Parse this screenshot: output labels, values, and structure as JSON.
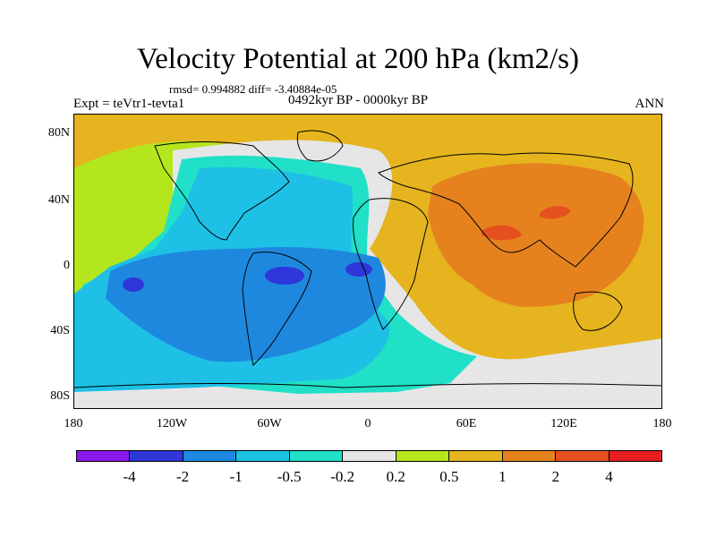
{
  "title": "Velocity Potential at 200 hPa (km2/s)",
  "stats": "rmsd= 0.994882 diff= -3.40884e-05",
  "experiment": "Expt = teVtr1-tevta1",
  "period": "0492kyr BP - 0000kyr BP",
  "season": "ANN",
  "lat_labels": [
    "80N",
    "40N",
    "0",
    "40S",
    "80S"
  ],
  "lon_labels": [
    "180",
    "120W",
    "60W",
    "0",
    "60E",
    "120E",
    "180"
  ],
  "colorbar": {
    "labels": [
      "-4",
      "-2",
      "-1",
      "-0.5",
      "-0.2",
      "0.2",
      "0.5",
      "1",
      "2",
      "4"
    ],
    "colors": [
      "#8a1be8",
      "#2e37d9",
      "#1e88de",
      "#1ec0e6",
      "#20e0c8",
      "#e6e6e6",
      "#b4e61e",
      "#e6b41e",
      "#e6821e",
      "#e6501e",
      "#e61e1e"
    ]
  },
  "palette": {
    "ocean_light": "#e6e6e6",
    "blue_mid": "#1ec0e6",
    "blue_deep": "#1e88de",
    "blue_min": "#2e37d9",
    "cyan": "#20e0c8",
    "green": "#b4e61e",
    "yellow": "#e6b41e",
    "orange": "#e6821e",
    "red": "#e6501e",
    "coast": "#000000"
  }
}
